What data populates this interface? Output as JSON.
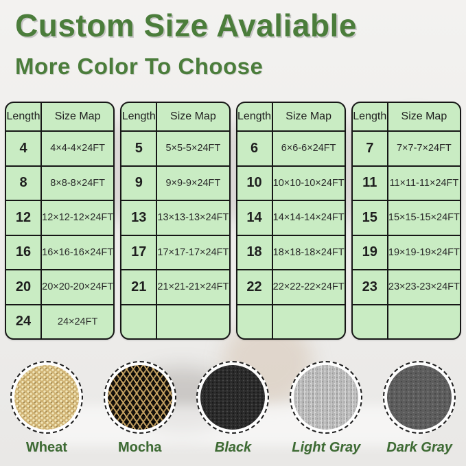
{
  "header": {
    "title": "Custom Size Avaliable",
    "subtitle": "More Color To Choose",
    "accent_color": "#4b7d3b"
  },
  "size_tables": {
    "column_headers": [
      "Length",
      "Size Map"
    ],
    "cell_background": "#c9ecc3",
    "tables": [
      {
        "rows": [
          [
            "4",
            "4×4-4×24FT"
          ],
          [
            "8",
            "8×8-8×24FT"
          ],
          [
            "12",
            "12×12-12×24FT"
          ],
          [
            "16",
            "16×16-16×24FT"
          ],
          [
            "20",
            "20×20-20×24FT"
          ],
          [
            "24",
            "24×24FT"
          ]
        ]
      },
      {
        "rows": [
          [
            "5",
            "5×5-5×24FT"
          ],
          [
            "9",
            "9×9-9×24FT"
          ],
          [
            "13",
            "13×13-13×24FT"
          ],
          [
            "17",
            "17×17-17×24FT"
          ],
          [
            "21",
            "21×21-21×24FT"
          ],
          [
            "",
            ""
          ]
        ]
      },
      {
        "rows": [
          [
            "6",
            "6×6-6×24FT"
          ],
          [
            "10",
            "10×10-10×24FT"
          ],
          [
            "14",
            "14×14-14×24FT"
          ],
          [
            "18",
            "18×18-18×24FT"
          ],
          [
            "22",
            "22×22-22×24FT"
          ],
          [
            "",
            ""
          ]
        ]
      },
      {
        "rows": [
          [
            "7",
            "7×7-7×24FT"
          ],
          [
            "11",
            "11×11-11×24FT"
          ],
          [
            "15",
            "15×15-15×24FT"
          ],
          [
            "19",
            "19×19-19×24FT"
          ],
          [
            "23",
            "23×23-23×24FT"
          ],
          [
            "",
            ""
          ]
        ]
      }
    ]
  },
  "color_swatches": {
    "label_color": "#3d6b33",
    "items": [
      {
        "label": "Wheat",
        "texture": "wheat",
        "base_color": "#cfb273",
        "italic": false
      },
      {
        "label": "Mocha",
        "texture": "mocha",
        "base_color": "#17120c",
        "italic": false
      },
      {
        "label": "Black",
        "texture": "black",
        "base_color": "#2b2b2b",
        "italic": true
      },
      {
        "label": "Light Gray",
        "texture": "lightgray",
        "base_color": "#b4b4b4",
        "italic": true
      },
      {
        "label": "Dark Gray",
        "texture": "darkgray",
        "base_color": "#5d5d5d",
        "italic": true
      }
    ]
  }
}
